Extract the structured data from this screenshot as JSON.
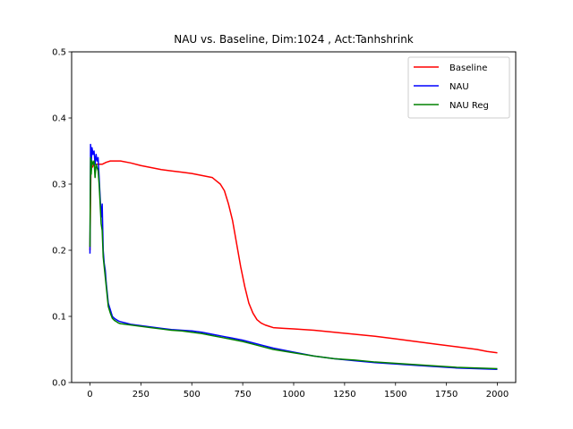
{
  "chart_data": {
    "type": "line",
    "title": "NAU vs. Baseline, Dim:1024 , Act:Tanhshrink",
    "xlabel": "",
    "ylabel": "",
    "xlim": [
      -90,
      2090
    ],
    "ylim": [
      0,
      0.5
    ],
    "xticks": [
      0,
      250,
      500,
      750,
      1000,
      1250,
      1500,
      1750,
      2000
    ],
    "yticks": [
      0.0,
      0.1,
      0.2,
      0.3,
      0.4,
      0.5
    ],
    "xtick_labels": [
      "0",
      "250",
      "500",
      "750",
      "1000",
      "1250",
      "1500",
      "1750",
      "2000"
    ],
    "ytick_labels": [
      "0.0",
      "0.1",
      "0.2",
      "0.3",
      "0.4",
      "0.5"
    ],
    "grid": false,
    "legend": "top-right",
    "series": [
      {
        "name": "Baseline",
        "color": "#ff0000",
        "x": [
          0,
          5,
          10,
          20,
          40,
          60,
          80,
          100,
          150,
          200,
          250,
          300,
          350,
          400,
          450,
          500,
          550,
          600,
          620,
          640,
          660,
          680,
          700,
          720,
          740,
          760,
          780,
          800,
          820,
          840,
          860,
          880,
          900,
          950,
          1000,
          1100,
          1200,
          1300,
          1400,
          1500,
          1600,
          1700,
          1800,
          1900,
          1950,
          2000
        ],
        "y": [
          0.2,
          0.33,
          0.325,
          0.33,
          0.33,
          0.33,
          0.333,
          0.335,
          0.335,
          0.332,
          0.328,
          0.325,
          0.322,
          0.32,
          0.318,
          0.316,
          0.313,
          0.31,
          0.305,
          0.3,
          0.29,
          0.27,
          0.245,
          0.21,
          0.175,
          0.145,
          0.12,
          0.105,
          0.095,
          0.09,
          0.087,
          0.085,
          0.083,
          0.082,
          0.081,
          0.079,
          0.076,
          0.073,
          0.07,
          0.066,
          0.062,
          0.058,
          0.054,
          0.05,
          0.047,
          0.045
        ]
      },
      {
        "name": "NAU",
        "color": "#0000ff",
        "x": [
          0,
          3,
          6,
          10,
          15,
          20,
          25,
          30,
          35,
          40,
          45,
          50,
          55,
          60,
          65,
          70,
          75,
          80,
          90,
          100,
          110,
          120,
          130,
          140,
          150,
          175,
          200,
          250,
          300,
          350,
          400,
          450,
          500,
          550,
          600,
          650,
          700,
          750,
          800,
          850,
          900,
          1000,
          1100,
          1200,
          1300,
          1400,
          1500,
          1600,
          1700,
          1800,
          1900,
          2000
        ],
        "y": [
          0.195,
          0.36,
          0.33,
          0.355,
          0.345,
          0.35,
          0.33,
          0.345,
          0.335,
          0.34,
          0.31,
          0.28,
          0.25,
          0.27,
          0.2,
          0.18,
          0.17,
          0.15,
          0.12,
          0.11,
          0.1,
          0.097,
          0.095,
          0.093,
          0.092,
          0.09,
          0.088,
          0.086,
          0.084,
          0.082,
          0.08,
          0.079,
          0.078,
          0.076,
          0.073,
          0.07,
          0.067,
          0.064,
          0.06,
          0.056,
          0.052,
          0.046,
          0.04,
          0.036,
          0.033,
          0.03,
          0.028,
          0.026,
          0.024,
          0.022,
          0.021,
          0.02
        ]
      },
      {
        "name": "NAU Reg",
        "color": "#008000",
        "x": [
          0,
          3,
          6,
          10,
          15,
          20,
          25,
          30,
          35,
          40,
          45,
          50,
          55,
          60,
          65,
          70,
          75,
          80,
          90,
          100,
          110,
          120,
          130,
          140,
          150,
          175,
          200,
          250,
          300,
          350,
          400,
          450,
          500,
          550,
          600,
          650,
          700,
          750,
          800,
          850,
          900,
          1000,
          1100,
          1200,
          1300,
          1400,
          1500,
          1600,
          1700,
          1800,
          1900,
          2000
        ],
        "y": [
          0.205,
          0.34,
          0.315,
          0.335,
          0.33,
          0.335,
          0.31,
          0.33,
          0.325,
          0.32,
          0.3,
          0.27,
          0.24,
          0.23,
          0.19,
          0.175,
          0.16,
          0.145,
          0.115,
          0.105,
          0.097,
          0.094,
          0.092,
          0.09,
          0.089,
          0.088,
          0.087,
          0.085,
          0.083,
          0.081,
          0.079,
          0.078,
          0.076,
          0.074,
          0.071,
          0.068,
          0.065,
          0.062,
          0.058,
          0.054,
          0.05,
          0.045,
          0.04,
          0.036,
          0.034,
          0.031,
          0.029,
          0.027,
          0.025,
          0.023,
          0.022,
          0.021
        ]
      }
    ]
  }
}
